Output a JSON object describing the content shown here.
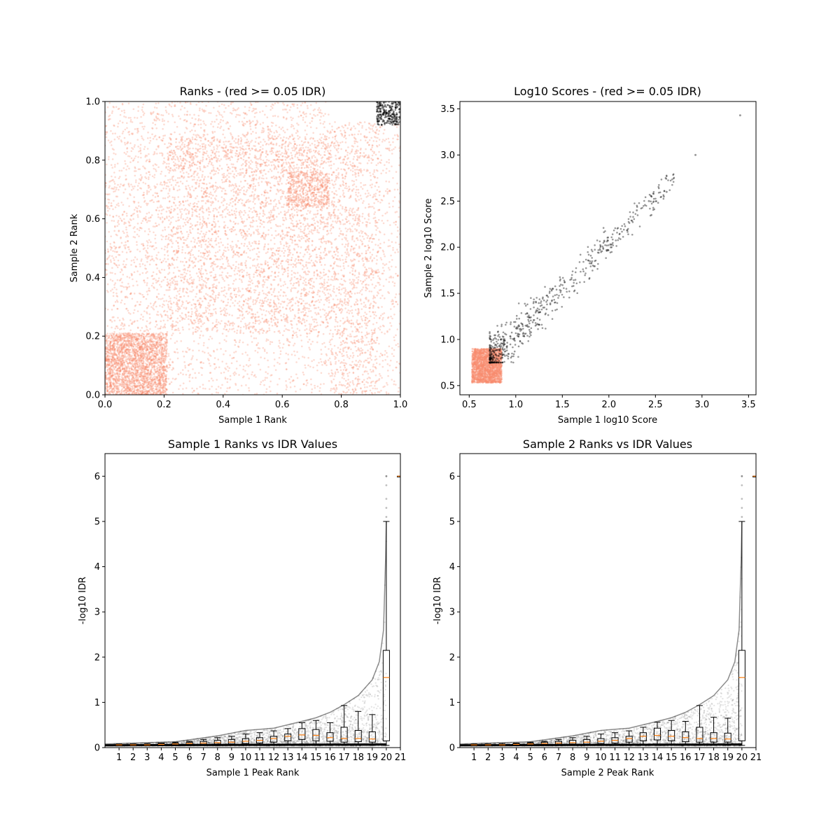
{
  "figure": {
    "background": "#ffffff",
    "colors": {
      "fail": "#fa8b6d",
      "pass": "#000000",
      "median": "#ff7f0e",
      "box": "#000000"
    }
  },
  "chart_data": [
    {
      "id": "ranks",
      "type": "scatter",
      "title": "Ranks - (red >= 0.05 IDR)",
      "xlabel": "Sample 1 Rank",
      "ylabel": "Sample 2 Rank",
      "xlim": [
        0,
        1
      ],
      "ylim": [
        0,
        1
      ],
      "xticks": [
        "0.0",
        "0.2",
        "0.4",
        "0.6",
        "0.8",
        "1.0"
      ],
      "yticks": [
        "0.0",
        "0.2",
        "0.4",
        "0.6",
        "0.8",
        "1.0"
      ],
      "series": [
        {
          "color": "#fa8b6d",
          "alpha": 0.3,
          "density_regions": [
            {
              "x": [
                0.0,
                0.21
              ],
              "y": [
                0.0,
                0.21
              ],
              "n": 2600
            },
            {
              "x": [
                0.21,
                0.76
              ],
              "y": [
                0.21,
                0.88
              ],
              "n": 3600
            },
            {
              "x": [
                0.62,
                0.76
              ],
              "y": [
                0.64,
                0.76
              ],
              "n": 500
            },
            {
              "x": [
                0.0,
                0.21
              ],
              "y": [
                0.21,
                0.76
              ],
              "n": 700
            },
            {
              "x": [
                0.76,
                0.93
              ],
              "y": [
                0.21,
                0.93
              ],
              "n": 1100
            },
            {
              "x": [
                0.21,
                0.76
              ],
              "y": [
                0.0,
                0.21
              ],
              "n": 400
            },
            {
              "x": [
                0.76,
                0.93
              ],
              "y": [
                0.0,
                0.21
              ],
              "n": 350
            },
            {
              "x": [
                0.0,
                0.76
              ],
              "y": [
                0.76,
                1.0
              ],
              "n": 900
            },
            {
              "x": [
                0.93,
                1.0
              ],
              "y": [
                0.0,
                0.93
              ],
              "n": 250
            }
          ]
        },
        {
          "color": "#000000",
          "alpha": 0.45,
          "density_regions": [
            {
              "x": [
                0.92,
                1.0
              ],
              "y": [
                0.92,
                1.0
              ],
              "n": 260
            }
          ]
        }
      ]
    },
    {
      "id": "scores",
      "type": "scatter",
      "title": "Log10 Scores - (red >= 0.05 IDR)",
      "xlabel": "Sample 1 log10 Score",
      "ylabel": "Sample 2 log10 Score",
      "xlim": [
        0.4,
        3.58
      ],
      "ylim": [
        0.4,
        3.58
      ],
      "xticks": [
        "0.5",
        "1.0",
        "1.5",
        "2.0",
        "2.5",
        "3.0",
        "3.5"
      ],
      "yticks": [
        "0.5",
        "1.0",
        "1.5",
        "2.0",
        "2.5",
        "3.0",
        "3.5"
      ],
      "series": [
        {
          "color": "#fa8b6d",
          "alpha": 0.3,
          "density_regions": [
            {
              "x": [
                0.53,
                0.85
              ],
              "y": [
                0.53,
                0.9
              ],
              "n": 2500
            }
          ]
        },
        {
          "color": "#000000",
          "alpha": 0.4,
          "trend": {
            "x_range": [
              0.72,
              2.7
            ],
            "slope": 1.0,
            "spread": 0.12,
            "n": 650
          },
          "points": [
            [
              2.93,
              3.0
            ],
            [
              3.41,
              3.43
            ],
            [
              2.62,
              2.6
            ],
            [
              2.59,
              2.55
            ],
            [
              2.43,
              2.5
            ],
            [
              2.3,
              2.4
            ]
          ]
        }
      ]
    },
    {
      "id": "s1-idr",
      "type": "scatter",
      "title": "Sample 1 Ranks vs IDR Values",
      "xlabel": "Sample 1 Peak Rank",
      "ylabel": "-log10 IDR",
      "xlim": [
        0,
        21
      ],
      "ylim": [
        0,
        6.5
      ],
      "xticks": [
        "1",
        "2",
        "3",
        "4",
        "5",
        "6",
        "7",
        "8",
        "9",
        "10",
        "11",
        "12",
        "13",
        "14",
        "15",
        "16",
        "17",
        "18",
        "19",
        "20",
        "21"
      ],
      "yticks": [
        "0",
        "1",
        "2",
        "3",
        "4",
        "5",
        "6"
      ],
      "idr_curve_upper": [
        [
          0,
          0.08
        ],
        [
          5,
          0.13
        ],
        [
          8,
          0.26
        ],
        [
          10,
          0.38
        ],
        [
          12,
          0.43
        ],
        [
          14,
          0.58
        ],
        [
          15,
          0.66
        ],
        [
          16,
          0.78
        ],
        [
          17,
          0.95
        ],
        [
          18,
          1.15
        ],
        [
          19,
          1.5
        ],
        [
          19.5,
          1.9
        ],
        [
          19.8,
          2.6
        ],
        [
          19.95,
          4.2
        ],
        [
          20,
          5.0
        ]
      ],
      "outliers": [
        [
          20,
          6.0
        ],
        [
          20,
          5.8
        ],
        [
          20,
          5.5
        ],
        [
          20,
          5.3
        ],
        [
          20,
          5.1
        ],
        [
          20,
          6.0
        ]
      ],
      "boxes": [
        {
          "pos": 1,
          "q1": 0.05,
          "med": 0.06,
          "q3": 0.07,
          "lo": 0.04,
          "hi": 0.08
        },
        {
          "pos": 2,
          "q1": 0.05,
          "med": 0.06,
          "q3": 0.07,
          "lo": 0.04,
          "hi": 0.08
        },
        {
          "pos": 3,
          "q1": 0.05,
          "med": 0.06,
          "q3": 0.07,
          "lo": 0.04,
          "hi": 0.09
        },
        {
          "pos": 4,
          "q1": 0.06,
          "med": 0.07,
          "q3": 0.09,
          "lo": 0.05,
          "hi": 0.1
        },
        {
          "pos": 5,
          "q1": 0.06,
          "med": 0.08,
          "q3": 0.1,
          "lo": 0.05,
          "hi": 0.12
        },
        {
          "pos": 6,
          "q1": 0.07,
          "med": 0.09,
          "q3": 0.12,
          "lo": 0.05,
          "hi": 0.14
        },
        {
          "pos": 7,
          "q1": 0.07,
          "med": 0.1,
          "q3": 0.14,
          "lo": 0.05,
          "hi": 0.18
        },
        {
          "pos": 8,
          "q1": 0.08,
          "med": 0.11,
          "q3": 0.16,
          "lo": 0.05,
          "hi": 0.22
        },
        {
          "pos": 9,
          "q1": 0.08,
          "med": 0.12,
          "q3": 0.18,
          "lo": 0.05,
          "hi": 0.25
        },
        {
          "pos": 10,
          "q1": 0.09,
          "med": 0.14,
          "q3": 0.2,
          "lo": 0.05,
          "hi": 0.3
        },
        {
          "pos": 11,
          "q1": 0.1,
          "med": 0.16,
          "q3": 0.22,
          "lo": 0.05,
          "hi": 0.33
        },
        {
          "pos": 12,
          "q1": 0.12,
          "med": 0.2,
          "q3": 0.25,
          "lo": 0.06,
          "hi": 0.37
        },
        {
          "pos": 13,
          "q1": 0.15,
          "med": 0.25,
          "q3": 0.3,
          "lo": 0.07,
          "hi": 0.42
        },
        {
          "pos": 14,
          "q1": 0.18,
          "med": 0.28,
          "q3": 0.42,
          "lo": 0.08,
          "hi": 0.55
        },
        {
          "pos": 15,
          "q1": 0.15,
          "med": 0.27,
          "q3": 0.4,
          "lo": 0.06,
          "hi": 0.6
        },
        {
          "pos": 16,
          "q1": 0.14,
          "med": 0.22,
          "q3": 0.33,
          "lo": 0.06,
          "hi": 0.55
        },
        {
          "pos": 17,
          "q1": 0.12,
          "med": 0.2,
          "q3": 0.45,
          "lo": 0.05,
          "hi": 0.93
        },
        {
          "pos": 18,
          "q1": 0.13,
          "med": 0.2,
          "q3": 0.38,
          "lo": 0.05,
          "hi": 0.8
        },
        {
          "pos": 19,
          "q1": 0.12,
          "med": 0.19,
          "q3": 0.35,
          "lo": 0.05,
          "hi": 0.73
        },
        {
          "pos": 20,
          "q1": 0.15,
          "med": 1.55,
          "q3": 2.15,
          "lo": 0.05,
          "hi": 5.0
        },
        {
          "pos": 21,
          "q1": 6.0,
          "med": 6.0,
          "q3": 6.0,
          "lo": 6.0,
          "hi": 6.0
        }
      ]
    },
    {
      "id": "s2-idr",
      "type": "scatter",
      "title": "Sample 2 Ranks vs IDR Values",
      "xlabel": "Sample 2 Peak Rank",
      "ylabel": "-log10 IDR",
      "xlim": [
        0,
        21
      ],
      "ylim": [
        0,
        6.5
      ],
      "xticks": [
        "1",
        "2",
        "3",
        "4",
        "5",
        "6",
        "7",
        "8",
        "9",
        "10",
        "11",
        "12",
        "13",
        "14",
        "15",
        "16",
        "17",
        "18",
        "19",
        "20",
        "21"
      ],
      "yticks": [
        "0",
        "1",
        "2",
        "3",
        "4",
        "5",
        "6"
      ],
      "idr_curve_upper": [
        [
          0,
          0.08
        ],
        [
          5,
          0.13
        ],
        [
          8,
          0.26
        ],
        [
          10,
          0.38
        ],
        [
          12,
          0.43
        ],
        [
          14,
          0.58
        ],
        [
          15,
          0.66
        ],
        [
          16,
          0.78
        ],
        [
          17,
          0.95
        ],
        [
          18,
          1.15
        ],
        [
          19,
          1.5
        ],
        [
          19.5,
          1.9
        ],
        [
          19.8,
          2.6
        ],
        [
          19.95,
          4.2
        ],
        [
          20,
          5.0
        ]
      ],
      "outliers": [
        [
          20,
          6.0
        ],
        [
          20,
          5.8
        ],
        [
          20,
          5.5
        ],
        [
          20,
          5.3
        ],
        [
          20,
          5.1
        ],
        [
          20,
          6.0
        ]
      ],
      "boxes": [
        {
          "pos": 1,
          "q1": 0.05,
          "med": 0.06,
          "q3": 0.07,
          "lo": 0.04,
          "hi": 0.08
        },
        {
          "pos": 2,
          "q1": 0.05,
          "med": 0.06,
          "q3": 0.07,
          "lo": 0.04,
          "hi": 0.08
        },
        {
          "pos": 3,
          "q1": 0.05,
          "med": 0.06,
          "q3": 0.07,
          "lo": 0.04,
          "hi": 0.09
        },
        {
          "pos": 4,
          "q1": 0.06,
          "med": 0.07,
          "q3": 0.09,
          "lo": 0.05,
          "hi": 0.1
        },
        {
          "pos": 5,
          "q1": 0.06,
          "med": 0.08,
          "q3": 0.1,
          "lo": 0.05,
          "hi": 0.12
        },
        {
          "pos": 6,
          "q1": 0.07,
          "med": 0.09,
          "q3": 0.12,
          "lo": 0.05,
          "hi": 0.14
        },
        {
          "pos": 7,
          "q1": 0.07,
          "med": 0.1,
          "q3": 0.14,
          "lo": 0.05,
          "hi": 0.18
        },
        {
          "pos": 8,
          "q1": 0.08,
          "med": 0.11,
          "q3": 0.16,
          "lo": 0.05,
          "hi": 0.22
        },
        {
          "pos": 9,
          "q1": 0.08,
          "med": 0.12,
          "q3": 0.18,
          "lo": 0.05,
          "hi": 0.25
        },
        {
          "pos": 10,
          "q1": 0.09,
          "med": 0.14,
          "q3": 0.2,
          "lo": 0.05,
          "hi": 0.3
        },
        {
          "pos": 11,
          "q1": 0.1,
          "med": 0.16,
          "q3": 0.22,
          "lo": 0.05,
          "hi": 0.33
        },
        {
          "pos": 12,
          "q1": 0.12,
          "med": 0.2,
          "q3": 0.25,
          "lo": 0.06,
          "hi": 0.37
        },
        {
          "pos": 13,
          "q1": 0.15,
          "med": 0.25,
          "q3": 0.33,
          "lo": 0.07,
          "hi": 0.45
        },
        {
          "pos": 14,
          "q1": 0.17,
          "med": 0.27,
          "q3": 0.43,
          "lo": 0.08,
          "hi": 0.56
        },
        {
          "pos": 15,
          "q1": 0.15,
          "med": 0.25,
          "q3": 0.38,
          "lo": 0.06,
          "hi": 0.6
        },
        {
          "pos": 16,
          "q1": 0.13,
          "med": 0.22,
          "q3": 0.35,
          "lo": 0.06,
          "hi": 0.58
        },
        {
          "pos": 17,
          "q1": 0.12,
          "med": 0.2,
          "q3": 0.45,
          "lo": 0.05,
          "hi": 0.93
        },
        {
          "pos": 18,
          "q1": 0.12,
          "med": 0.2,
          "q3": 0.33,
          "lo": 0.05,
          "hi": 0.67
        },
        {
          "pos": 19,
          "q1": 0.12,
          "med": 0.19,
          "q3": 0.32,
          "lo": 0.05,
          "hi": 0.65
        },
        {
          "pos": 20,
          "q1": 0.15,
          "med": 1.55,
          "q3": 2.15,
          "lo": 0.05,
          "hi": 5.0
        },
        {
          "pos": 21,
          "q1": 6.0,
          "med": 6.0,
          "q3": 6.0,
          "lo": 6.0,
          "hi": 6.0
        }
      ]
    }
  ]
}
